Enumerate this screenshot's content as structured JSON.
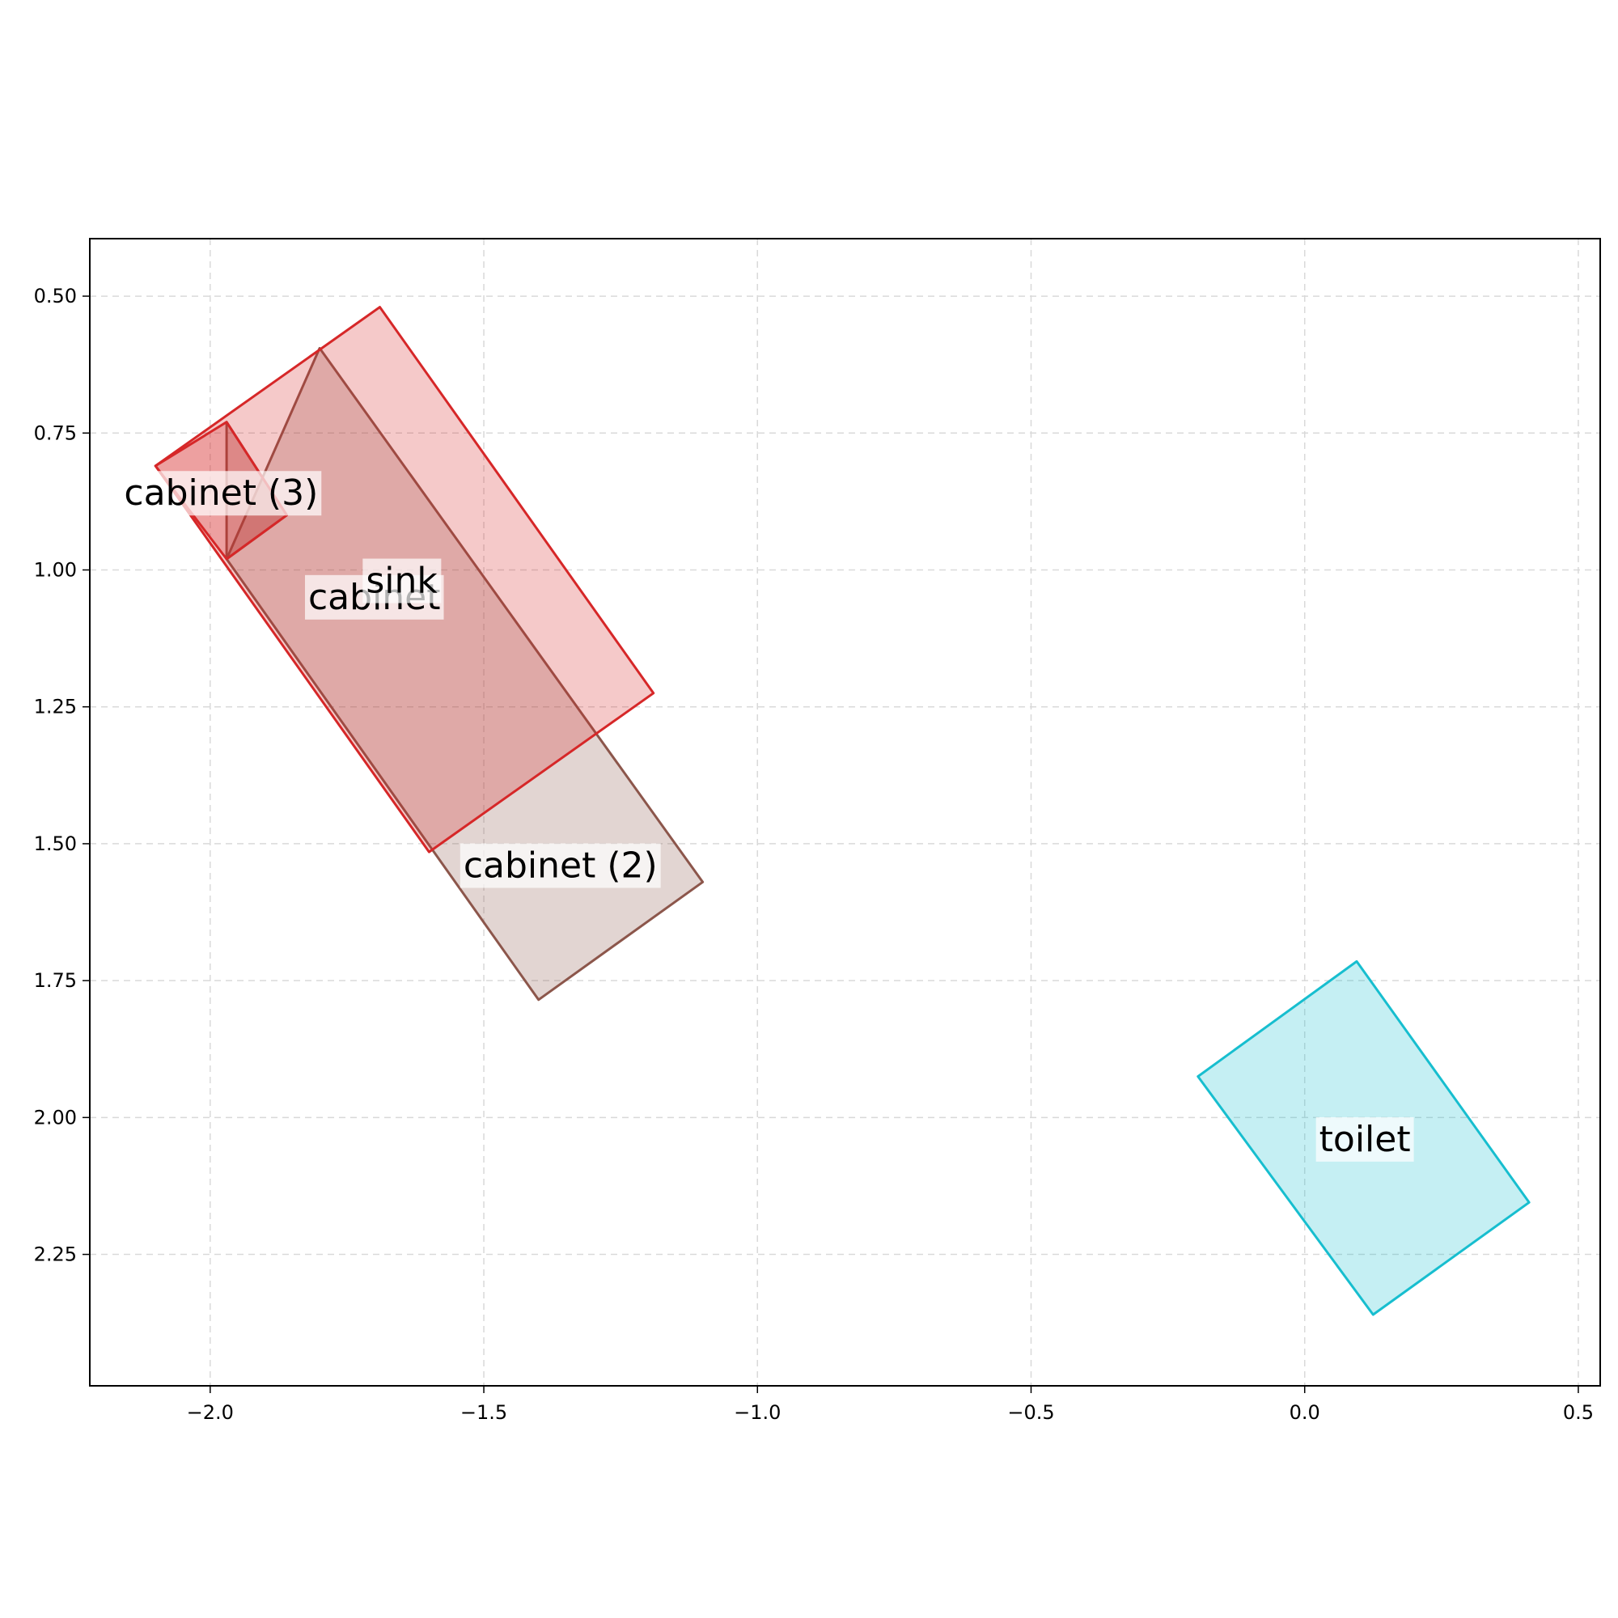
{
  "chart_data": {
    "type": "scatter",
    "title": "",
    "xlabel": "",
    "ylabel": "",
    "xlim": [
      -2.22,
      0.54
    ],
    "ylim": [
      0.395,
      2.49
    ],
    "y_inverted": true,
    "grid": true,
    "x_ticks": [
      -2.0,
      -1.5,
      -1.0,
      -0.5,
      0.0,
      0.5
    ],
    "x_tick_labels": [
      "−2.0",
      "−1.5",
      "−1.0",
      "−0.5",
      "0.0",
      "0.5"
    ],
    "y_ticks": [
      0.5,
      0.75,
      1.0,
      1.25,
      1.5,
      1.75,
      2.0,
      2.25
    ],
    "y_tick_labels": [
      "0.50",
      "0.75",
      "1.00",
      "1.25",
      "1.50",
      "1.75",
      "2.00",
      "2.25"
    ],
    "objects": [
      {
        "label": "cabinet (2)",
        "color": "#8c564b",
        "polygon": [
          [
            -1.8,
            0.595
          ],
          [
            -1.1,
            1.57
          ],
          [
            -1.4,
            1.785
          ],
          [
            -1.97,
            0.98
          ]
        ],
        "label_at": [
          -1.36,
          1.54
        ]
      },
      {
        "label": "cabinet",
        "color": "#8c564b",
        "polygon": [
          [
            -1.97,
            0.73
          ],
          [
            -1.86,
            0.9
          ],
          [
            -1.97,
            0.98
          ]
        ],
        "label_at": [
          -1.7,
          1.05
        ]
      },
      {
        "label": "sink",
        "color": "#d62728",
        "polygon": [
          [
            -1.69,
            0.52
          ],
          [
            -1.19,
            1.225
          ],
          [
            -1.6,
            1.515
          ],
          [
            -2.1,
            0.81
          ]
        ],
        "label_at": [
          -1.65,
          1.02
        ]
      },
      {
        "label": "cabinet (3)",
        "color": "#d62728",
        "polygon": [
          [
            -1.97,
            0.73
          ],
          [
            -1.86,
            0.9
          ],
          [
            -1.97,
            0.98
          ],
          [
            -2.1,
            0.81
          ]
        ],
        "label_at": [
          -1.98,
          0.86
        ]
      },
      {
        "label": "toilet",
        "color": "#17becf",
        "polygon": [
          [
            0.095,
            1.715
          ],
          [
            0.41,
            2.155
          ],
          [
            0.125,
            2.36
          ],
          [
            -0.195,
            1.925
          ]
        ],
        "label_at": [
          0.11,
          2.04
        ]
      }
    ]
  }
}
